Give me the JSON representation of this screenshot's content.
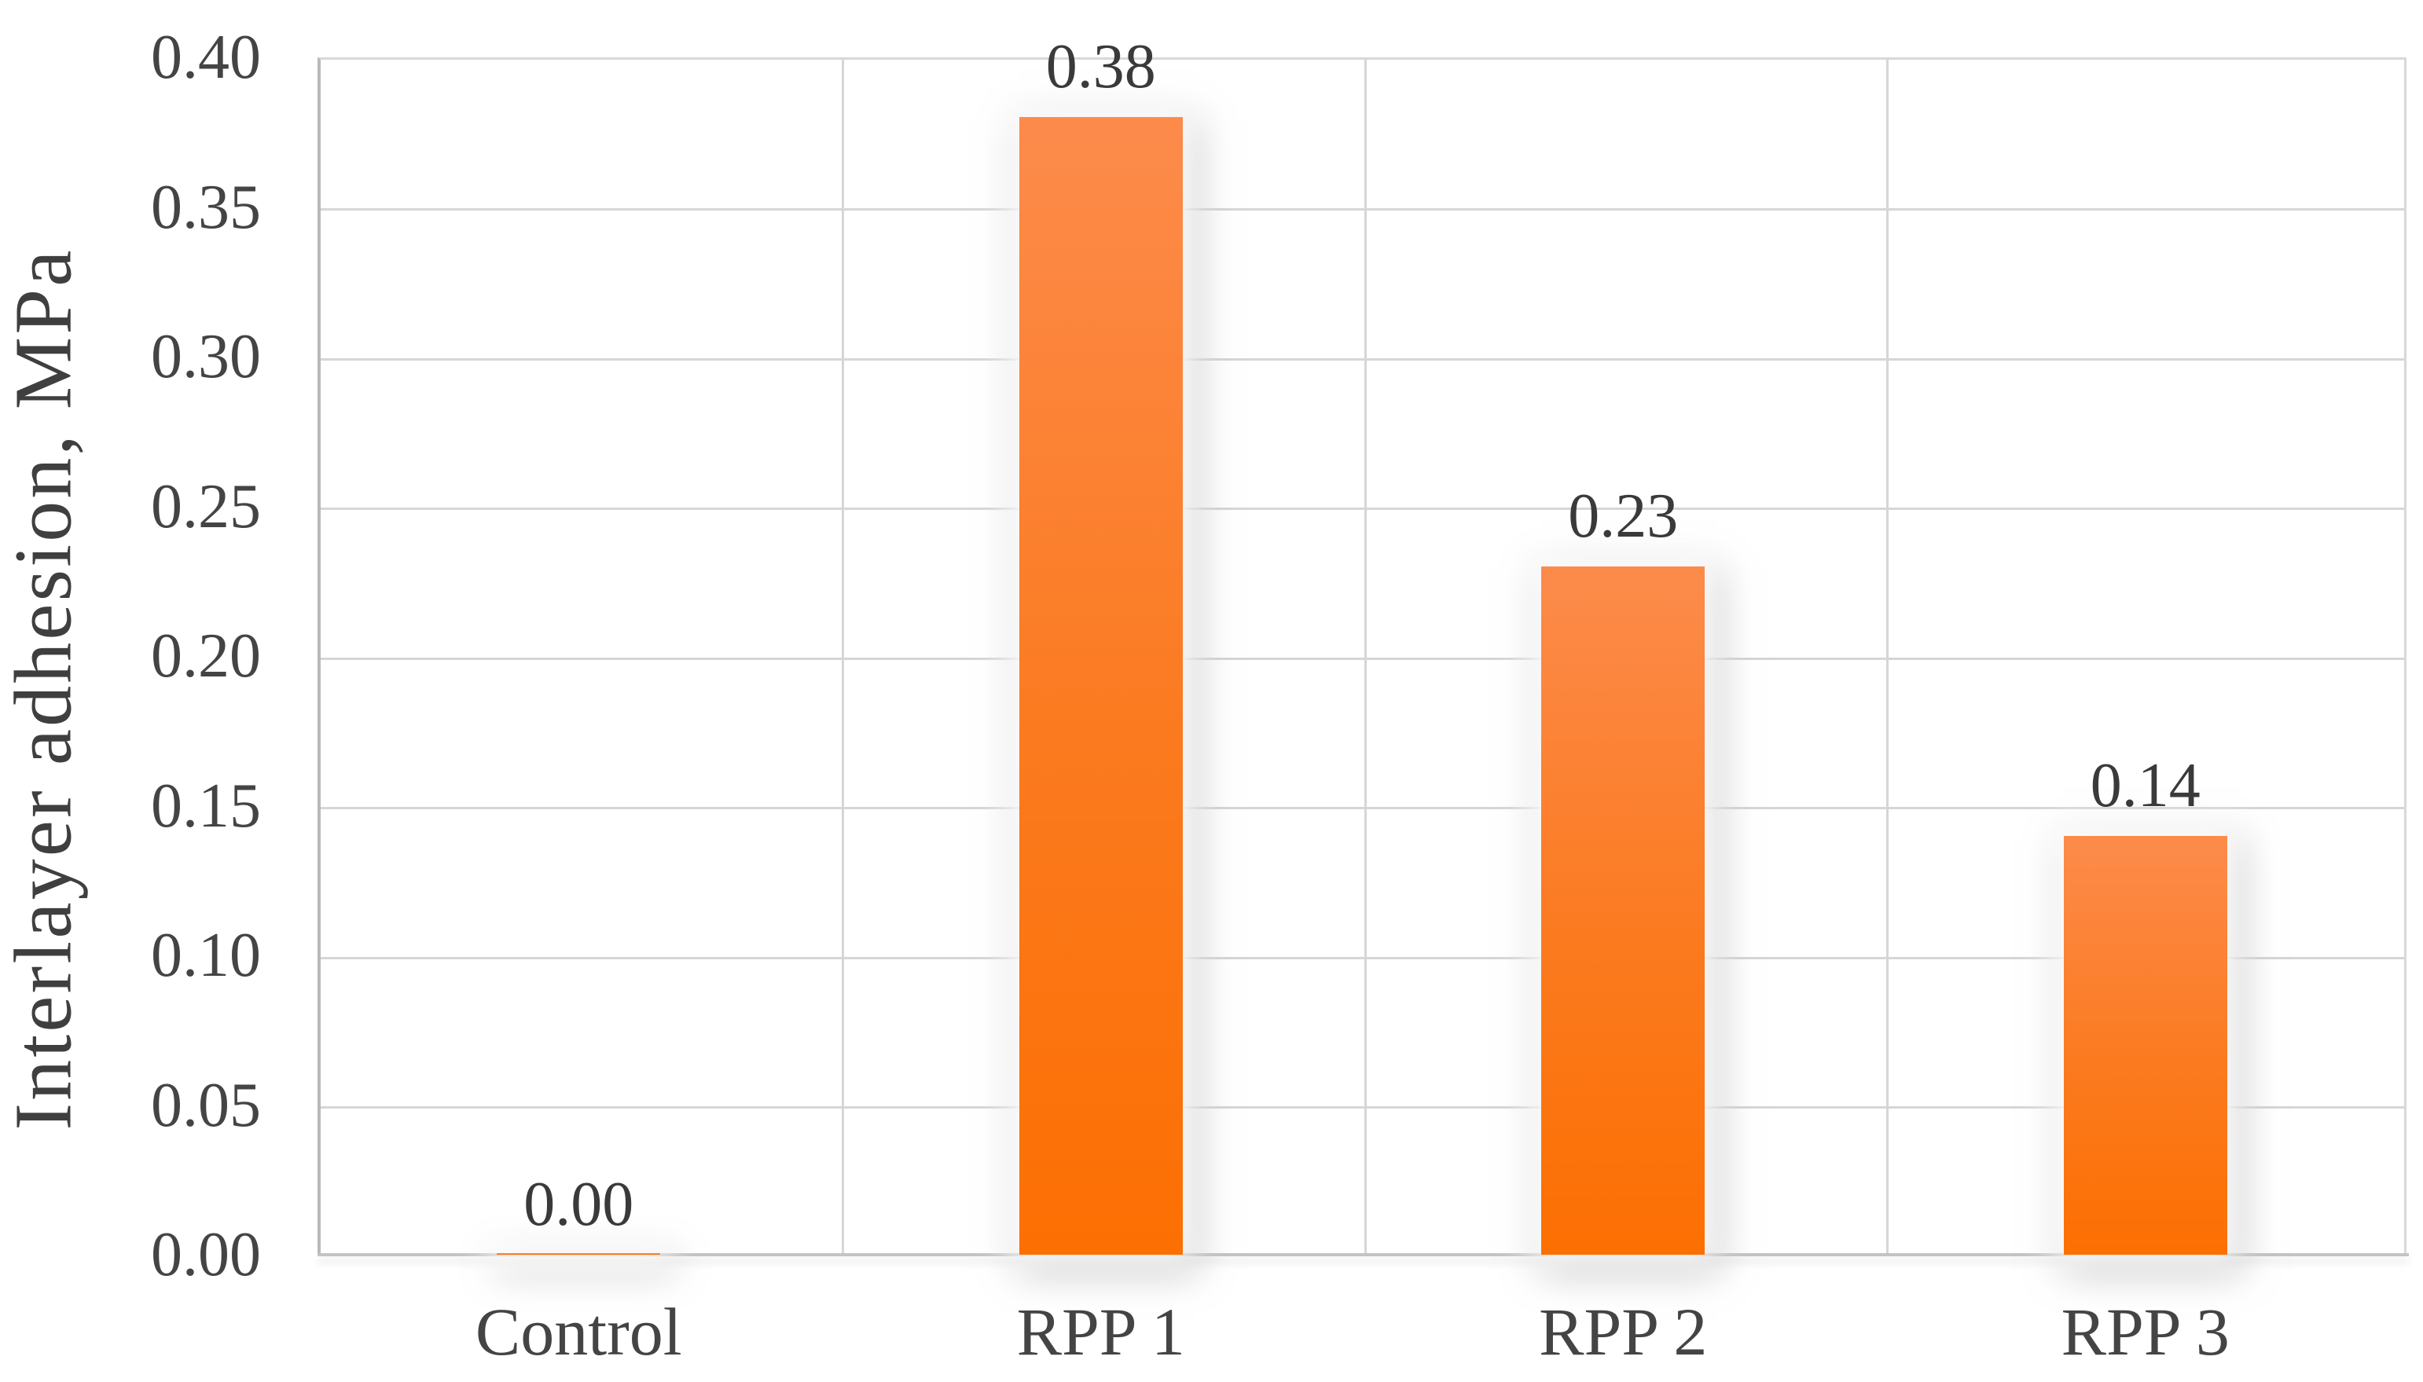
{
  "chart_data": {
    "type": "bar",
    "title": "",
    "categories": [
      "Control",
      "RPP 1",
      "RPP 2",
      "RPP 3"
    ],
    "values": [
      0.0,
      0.38,
      0.23,
      0.14
    ],
    "data_labels": [
      "0.00",
      "0.38",
      "0.23",
      "0.14"
    ],
    "xlabel": "",
    "ylabel": "Interlayer adhesion, MPa",
    "ylim": [
      0.0,
      0.4
    ],
    "ytick_step": 0.05,
    "ytick_labels_top_to_bottom": [
      "0.40",
      "0.35",
      "0.30",
      "0.25",
      "0.20",
      "0.15",
      "0.10",
      "0.05",
      "0.00"
    ],
    "grid": true,
    "legend": "none",
    "colors": {
      "bar_gradient_top": "#FC8B4B",
      "bar_gradient_bottom": "#FC6F02",
      "gridline": "#D6D6D6",
      "axis_line": "#B9B9B9",
      "tick_text": "#444444",
      "data_label_text": "#3A3A3A",
      "axis_title_text": "#3F3F3F",
      "background": "#FFFFFF"
    }
  }
}
